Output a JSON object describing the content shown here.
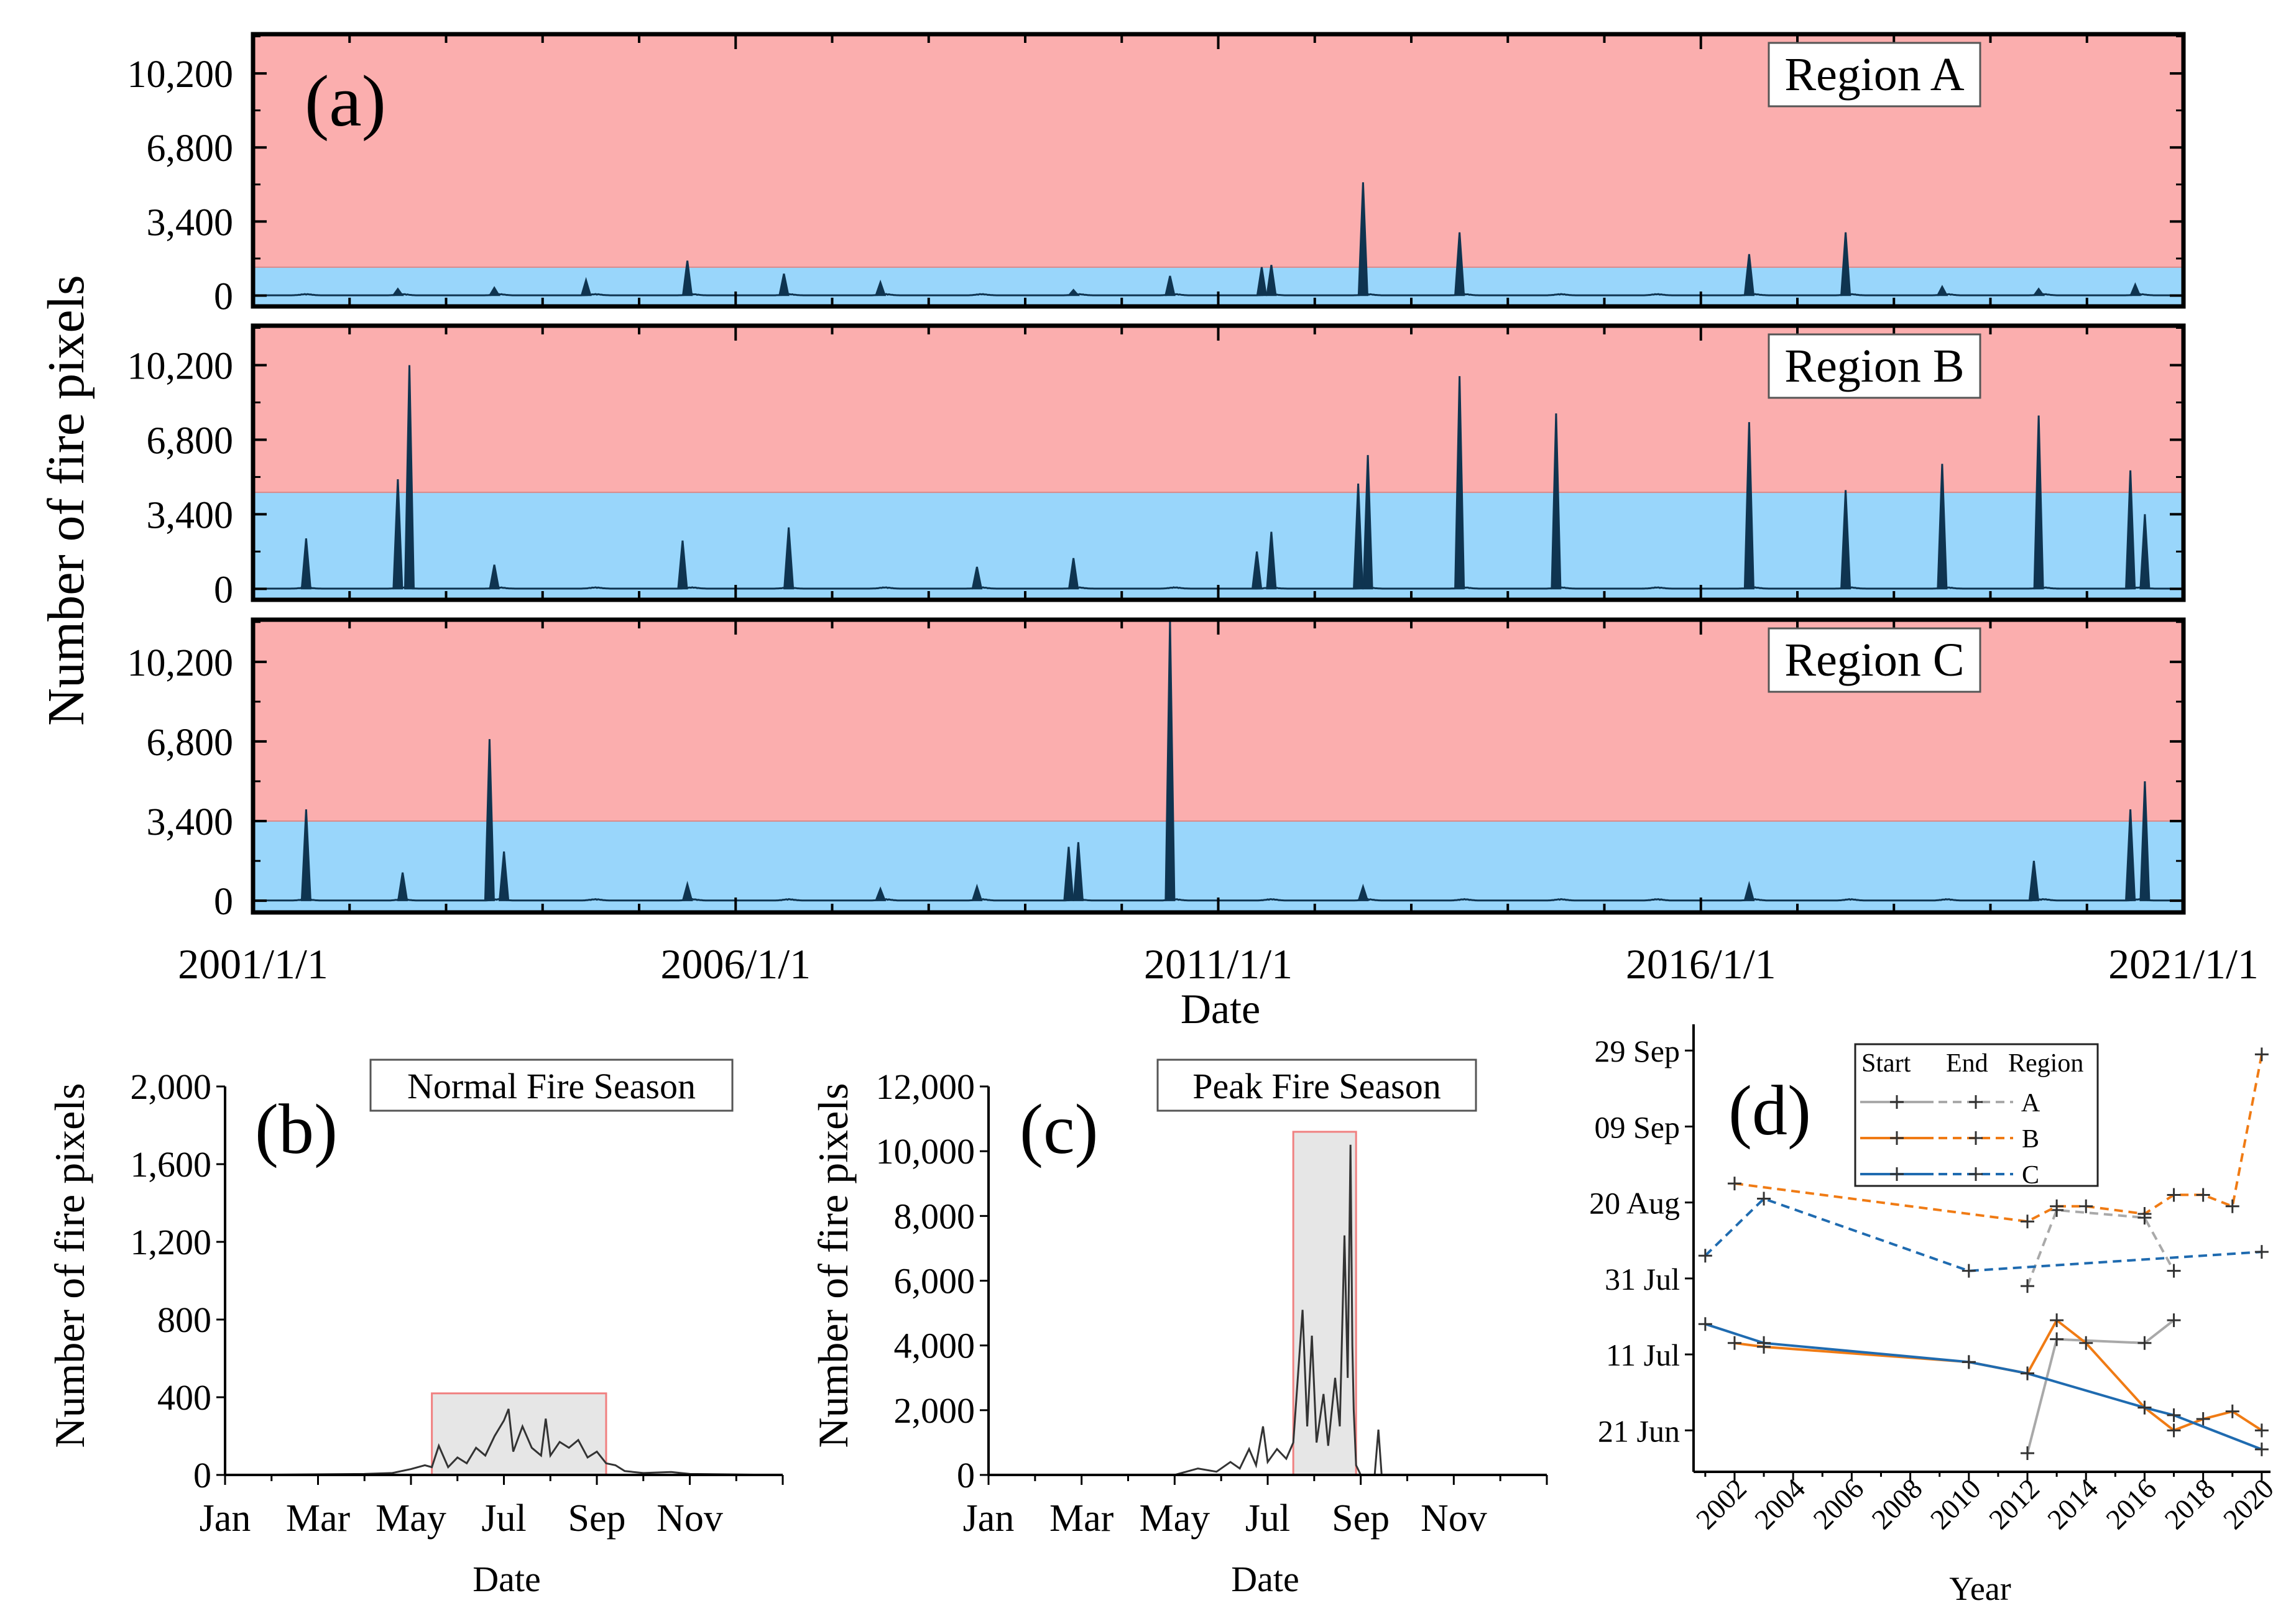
{
  "chart_data": [
    {
      "id": "a",
      "panel_label": "(a)",
      "type": "line",
      "ylabel": "Number of fire pixels",
      "xlabel": "Date",
      "x_ticks": [
        {
          "date": "2001/1/1",
          "label": "2001/1/1"
        },
        {
          "date": "2006/1/1",
          "label": "2006/1/1"
        },
        {
          "date": "2011/1/1",
          "label": "2011/1/1"
        },
        {
          "date": "2016/1/1",
          "label": "2016/1/1"
        },
        {
          "date": "2021/1/1",
          "label": "2021/1/1"
        }
      ],
      "xlim": [
        2001.0,
        2021.0
      ],
      "ylim": [
        -500,
        12000
      ],
      "y_ticks": [
        {
          "value": 0,
          "label": "0"
        },
        {
          "value": 3400,
          "label": "3,400"
        },
        {
          "value": 6800,
          "label": "6,800"
        },
        {
          "value": 10200,
          "label": "10,200"
        }
      ],
      "colors": {
        "high_zone": "#fbaeae",
        "low_zone": "#99d6fb",
        "line": "#0f3450"
      },
      "panels": [
        {
          "region": "Region A",
          "threshold": 1300,
          "peaks": [
            {
              "t": 2002.5,
              "v": 300
            },
            {
              "t": 2003.5,
              "v": 350
            },
            {
              "t": 2004.45,
              "v": 700
            },
            {
              "t": 2005.5,
              "v": 1600
            },
            {
              "t": 2006.5,
              "v": 1000
            },
            {
              "t": 2007.5,
              "v": 600
            },
            {
              "t": 2009.5,
              "v": 250
            },
            {
              "t": 2010.5,
              "v": 900
            },
            {
              "t": 2011.45,
              "v": 1300
            },
            {
              "t": 2011.55,
              "v": 1400
            },
            {
              "t": 2012.5,
              "v": 5200
            },
            {
              "t": 2013.5,
              "v": 2900
            },
            {
              "t": 2016.5,
              "v": 1900
            },
            {
              "t": 2017.5,
              "v": 2900
            },
            {
              "t": 2018.5,
              "v": 400
            },
            {
              "t": 2019.5,
              "v": 300
            },
            {
              "t": 2020.5,
              "v": 500
            }
          ]
        },
        {
          "region": "Region B",
          "threshold": 4400,
          "peaks": [
            {
              "t": 2001.55,
              "v": 2300
            },
            {
              "t": 2002.5,
              "v": 5000
            },
            {
              "t": 2002.62,
              "v": 10200
            },
            {
              "t": 2003.5,
              "v": 1100
            },
            {
              "t": 2005.45,
              "v": 2200
            },
            {
              "t": 2006.55,
              "v": 2800
            },
            {
              "t": 2008.5,
              "v": 1000
            },
            {
              "t": 2009.5,
              "v": 1400
            },
            {
              "t": 2011.4,
              "v": 1700
            },
            {
              "t": 2011.55,
              "v": 2600
            },
            {
              "t": 2012.45,
              "v": 4800
            },
            {
              "t": 2012.55,
              "v": 6100
            },
            {
              "t": 2013.5,
              "v": 9700
            },
            {
              "t": 2014.5,
              "v": 8000
            },
            {
              "t": 2016.5,
              "v": 7600
            },
            {
              "t": 2017.5,
              "v": 4500
            },
            {
              "t": 2018.5,
              "v": 5700
            },
            {
              "t": 2019.5,
              "v": 7900
            },
            {
              "t": 2020.45,
              "v": 5400
            },
            {
              "t": 2020.6,
              "v": 3400
            }
          ]
        },
        {
          "region": "Region C",
          "threshold": 3400,
          "peaks": [
            {
              "t": 2001.55,
              "v": 3900
            },
            {
              "t": 2002.55,
              "v": 1200
            },
            {
              "t": 2003.45,
              "v": 6900
            },
            {
              "t": 2003.6,
              "v": 2100
            },
            {
              "t": 2005.5,
              "v": 700
            },
            {
              "t": 2007.5,
              "v": 500
            },
            {
              "t": 2008.5,
              "v": 600
            },
            {
              "t": 2009.45,
              "v": 2300
            },
            {
              "t": 2009.55,
              "v": 2500
            },
            {
              "t": 2010.5,
              "v": 12000
            },
            {
              "t": 2012.5,
              "v": 600
            },
            {
              "t": 2016.5,
              "v": 700
            },
            {
              "t": 2019.45,
              "v": 1700
            },
            {
              "t": 2020.45,
              "v": 3900
            },
            {
              "t": 2020.6,
              "v": 5100
            }
          ]
        }
      ]
    },
    {
      "id": "b",
      "panel_label": "(b)",
      "type": "line",
      "title": "Normal Fire Season",
      "xlabel": "Date",
      "ylabel": "Number of fire pixels",
      "x_ticks": [
        {
          "month": 1,
          "label": "Jan"
        },
        {
          "month": 3,
          "label": "Mar"
        },
        {
          "month": 5,
          "label": "May"
        },
        {
          "month": 7,
          "label": "Jul"
        },
        {
          "month": 9,
          "label": "Sep"
        },
        {
          "month": 11,
          "label": "Nov"
        }
      ],
      "xlim": [
        1,
        13
      ],
      "ylim": [
        0,
        2000
      ],
      "y_ticks": [
        {
          "value": 0,
          "label": "0"
        },
        {
          "value": 400,
          "label": "400"
        },
        {
          "value": 800,
          "label": "800"
        },
        {
          "value": 1200,
          "label": "1,200"
        },
        {
          "value": 1600,
          "label": "1,600"
        },
        {
          "value": 2000,
          "label": "2,000"
        }
      ],
      "season_window": {
        "start_month": 5.45,
        "end_month": 9.2,
        "top_value": 420
      },
      "series": [
        {
          "name": "fire pixels",
          "points": [
            [
              1.0,
              0
            ],
            [
              4.0,
              5
            ],
            [
              4.6,
              10
            ],
            [
              5.0,
              30
            ],
            [
              5.3,
              50
            ],
            [
              5.45,
              40
            ],
            [
              5.6,
              150
            ],
            [
              5.8,
              40
            ],
            [
              6.0,
              90
            ],
            [
              6.2,
              60
            ],
            [
              6.4,
              140
            ],
            [
              6.6,
              100
            ],
            [
              6.8,
              200
            ],
            [
              7.0,
              280
            ],
            [
              7.1,
              340
            ],
            [
              7.2,
              120
            ],
            [
              7.4,
              250
            ],
            [
              7.6,
              140
            ],
            [
              7.8,
              100
            ],
            [
              7.9,
              290
            ],
            [
              8.0,
              100
            ],
            [
              8.2,
              170
            ],
            [
              8.4,
              140
            ],
            [
              8.6,
              180
            ],
            [
              8.8,
              90
            ],
            [
              9.0,
              120
            ],
            [
              9.2,
              60
            ],
            [
              9.4,
              50
            ],
            [
              9.6,
              20
            ],
            [
              10.0,
              10
            ],
            [
              10.6,
              15
            ],
            [
              11.0,
              5
            ],
            [
              13.0,
              0
            ]
          ]
        }
      ]
    },
    {
      "id": "c",
      "panel_label": "(c)",
      "type": "line",
      "title": "Peak Fire Season",
      "xlabel": "Date",
      "ylabel": "Number of fire pixels",
      "x_ticks": [
        {
          "month": 1,
          "label": "Jan"
        },
        {
          "month": 3,
          "label": "Mar"
        },
        {
          "month": 5,
          "label": "May"
        },
        {
          "month": 7,
          "label": "Jul"
        },
        {
          "month": 9,
          "label": "Sep"
        },
        {
          "month": 11,
          "label": "Nov"
        }
      ],
      "xlim": [
        1,
        13
      ],
      "ylim": [
        0,
        12000
      ],
      "y_ticks": [
        {
          "value": 0,
          "label": "0"
        },
        {
          "value": 2000,
          "label": "2,000"
        },
        {
          "value": 4000,
          "label": "4,000"
        },
        {
          "value": 6000,
          "label": "6,000"
        },
        {
          "value": 8000,
          "label": "8,000"
        },
        {
          "value": 10000,
          "label": "10,000"
        },
        {
          "value": 12000,
          "label": "12,000"
        }
      ],
      "season_window": {
        "start_month": 7.55,
        "end_month": 8.9,
        "top_value": 10600
      },
      "series": [
        {
          "name": "fire pixels",
          "points": [
            [
              1.0,
              0
            ],
            [
              5.0,
              0
            ],
            [
              5.5,
              200
            ],
            [
              5.9,
              100
            ],
            [
              6.2,
              400
            ],
            [
              6.4,
              200
            ],
            [
              6.6,
              800
            ],
            [
              6.75,
              300
            ],
            [
              6.9,
              1500
            ],
            [
              7.0,
              400
            ],
            [
              7.2,
              800
            ],
            [
              7.4,
              500
            ],
            [
              7.55,
              1000
            ],
            [
              7.75,
              5100
            ],
            [
              7.85,
              1500
            ],
            [
              7.95,
              4300
            ],
            [
              8.05,
              1000
            ],
            [
              8.2,
              2500
            ],
            [
              8.3,
              900
            ],
            [
              8.45,
              3000
            ],
            [
              8.55,
              1500
            ],
            [
              8.65,
              7400
            ],
            [
              8.72,
              3000
            ],
            [
              8.78,
              10200
            ],
            [
              8.82,
              4000
            ],
            [
              8.85,
              2000
            ],
            [
              8.9,
              300
            ],
            [
              9.0,
              0
            ],
            [
              9.3,
              0
            ],
            [
              9.38,
              1400
            ],
            [
              9.45,
              0
            ],
            [
              13.0,
              0
            ]
          ]
        }
      ]
    },
    {
      "id": "d",
      "panel_label": "(d)",
      "type": "line",
      "xlabel": "Year",
      "ylabel": "",
      "xlim": [
        2001,
        2020
      ],
      "ylim_day": [
        166,
        274
      ],
      "x_ticks": [
        {
          "value": 2002,
          "label": "2002"
        },
        {
          "value": 2004,
          "label": "2004"
        },
        {
          "value": 2006,
          "label": "2006"
        },
        {
          "value": 2008,
          "label": "2008"
        },
        {
          "value": 2010,
          "label": "2010"
        },
        {
          "value": 2012,
          "label": "2012"
        },
        {
          "value": 2014,
          "label": "2014"
        },
        {
          "value": 2016,
          "label": "2016"
        },
        {
          "value": 2018,
          "label": "2018"
        },
        {
          "value": 2020,
          "label": "2020"
        }
      ],
      "y_ticks": [
        {
          "day": 172,
          "label": "21 Jun"
        },
        {
          "day": 192,
          "label": "11 Jul"
        },
        {
          "day": 212,
          "label": "31 Jul"
        },
        {
          "day": 232,
          "label": "20 Aug"
        },
        {
          "day": 252,
          "label": "09 Sep"
        },
        {
          "day": 272,
          "label": "29 Sep"
        }
      ],
      "legend": {
        "position": "top-left",
        "headers": [
          "Start",
          "End",
          "Region"
        ],
        "entries": [
          {
            "label": "A",
            "color": "#a9a9a9"
          },
          {
            "label": "B",
            "color": "#f07b14"
          },
          {
            "label": "C",
            "color": "#1f6bb0"
          }
        ]
      },
      "series": [
        {
          "name": "A start",
          "color": "#a9a9a9",
          "dash": false,
          "points": [
            [
              2012,
              166
            ],
            [
              2013,
              196
            ],
            [
              2016,
              195
            ],
            [
              2017,
              201
            ]
          ]
        },
        {
          "name": "A end",
          "color": "#a9a9a9",
          "dash": true,
          "points": [
            [
              2012,
              210
            ],
            [
              2013,
              230
            ],
            [
              2016,
              228
            ],
            [
              2017,
              214
            ]
          ]
        },
        {
          "name": "B start",
          "color": "#f07b14",
          "dash": false,
          "points": [
            [
              2002,
              195
            ],
            [
              2003,
              194
            ],
            [
              2010,
              190
            ],
            [
              2012,
              187
            ],
            [
              2013,
              201
            ],
            [
              2014,
              195
            ],
            [
              2016,
              178
            ],
            [
              2017,
              172
            ],
            [
              2018,
              175
            ],
            [
              2019,
              177
            ],
            [
              2020,
              172
            ]
          ]
        },
        {
          "name": "B end",
          "color": "#f07b14",
          "dash": true,
          "points": [
            [
              2002,
              237
            ],
            [
              2012,
              227
            ],
            [
              2013,
              231
            ],
            [
              2014,
              231
            ],
            [
              2016,
              229
            ],
            [
              2017,
              234
            ],
            [
              2018,
              234
            ],
            [
              2019,
              231
            ],
            [
              2020,
              271
            ]
          ]
        },
        {
          "name": "C start",
          "color": "#1f6bb0",
          "dash": false,
          "points": [
            [
              2001,
              200
            ],
            [
              2003,
              195
            ],
            [
              2010,
              190
            ],
            [
              2012,
              187
            ],
            [
              2016,
              178
            ],
            [
              2017,
              176
            ],
            [
              2020,
              167
            ]
          ]
        },
        {
          "name": "C end",
          "color": "#1f6bb0",
          "dash": true,
          "points": [
            [
              2001,
              218
            ],
            [
              2003,
              233
            ],
            [
              2010,
              214
            ],
            [
              2020,
              219
            ]
          ]
        }
      ]
    }
  ]
}
